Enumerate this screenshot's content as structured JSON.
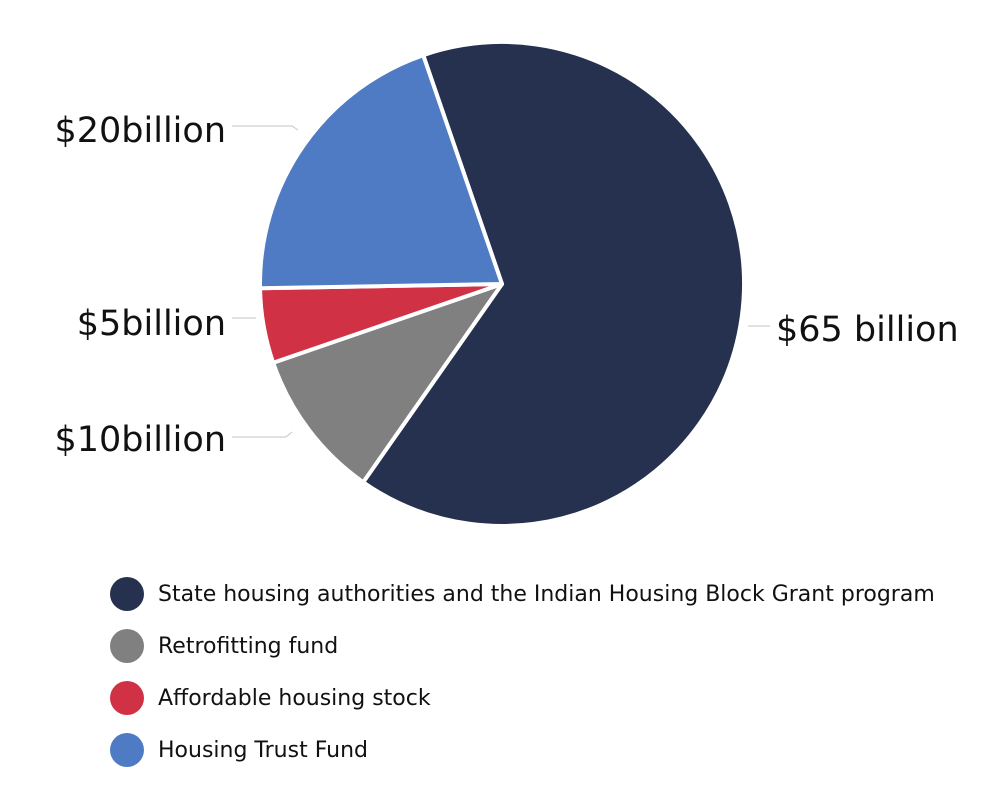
{
  "chart_data": {
    "type": "pie",
    "categories": [
      "State housing authorities and the Indian Housing Block Grant program",
      "Retrofitting fund",
      "Affordable housing stock",
      "Housing Trust Fund"
    ],
    "values": [
      65,
      10,
      5,
      20
    ],
    "data_labels": [
      "$65 billion",
      "$10billion",
      "$5billion",
      "$20billion"
    ],
    "colors": [
      "#25314f",
      "#808080",
      "#d03145",
      "#4f7bc4"
    ],
    "legend_position": "bottom"
  }
}
